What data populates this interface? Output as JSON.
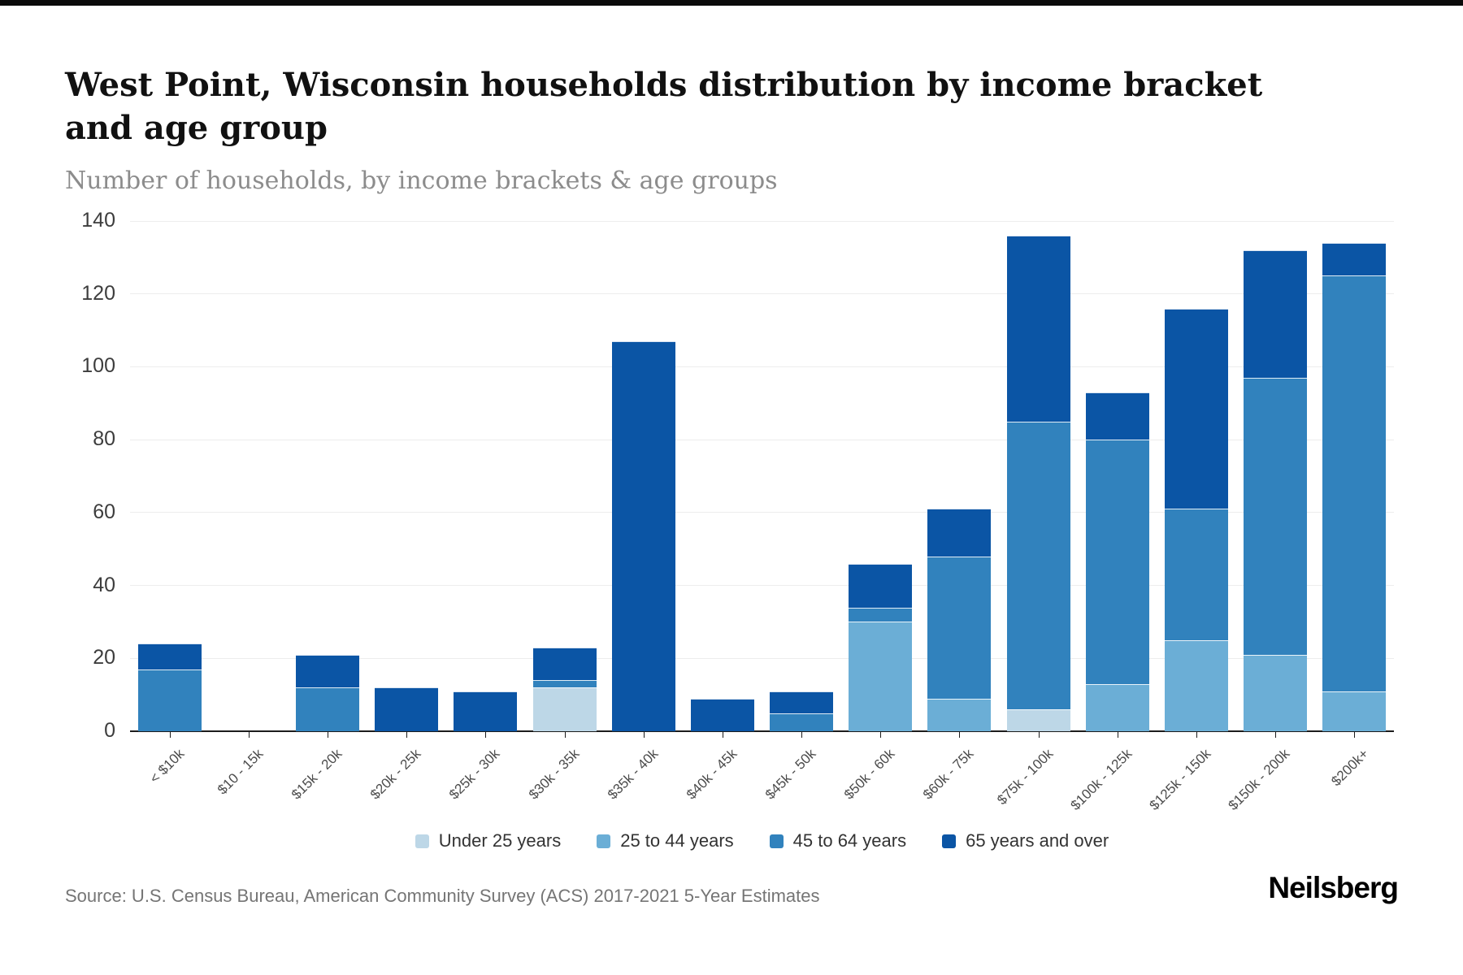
{
  "header": {
    "title": "West Point, Wisconsin households distribution by income bracket and age group",
    "subtitle": "Number of households, by income brackets & age groups"
  },
  "chart_data": {
    "type": "bar",
    "stacked": true,
    "title": "West Point, Wisconsin households distribution by income bracket and age group",
    "xlabel": "",
    "ylabel": "Number of households",
    "ylim": [
      0,
      140
    ],
    "yticks": [
      0,
      20,
      40,
      60,
      80,
      100,
      120,
      140
    ],
    "grid": true,
    "legend_position": "bottom",
    "categories": [
      "< $10k",
      "$10 - 15k",
      "$15k - 20k",
      "$20k - 25k",
      "$25k - 30k",
      "$30k - 35k",
      "$35k - 40k",
      "$40k - 45k",
      "$45k - 50k",
      "$50k - 60k",
      "$60k - 75k",
      "$75k - 100k",
      "$100k - 125k",
      "$125k - 150k",
      "$150k - 200k",
      "$200k+"
    ],
    "series": [
      {
        "name": "Under 25 years",
        "color": "#bdd7e7",
        "values": [
          0,
          0,
          0,
          0,
          0,
          12,
          0,
          0,
          0,
          0,
          0,
          6,
          0,
          0,
          0,
          0
        ]
      },
      {
        "name": "25 to 44 years",
        "color": "#6baed6",
        "values": [
          0,
          0,
          0,
          0,
          0,
          0,
          0,
          0,
          0,
          30,
          9,
          0,
          13,
          25,
          21,
          11
        ]
      },
      {
        "name": "45 to 64 years",
        "color": "#3182bd",
        "values": [
          17,
          0,
          12,
          0,
          0,
          2,
          0,
          0,
          5,
          4,
          39,
          79,
          67,
          36,
          76,
          114
        ]
      },
      {
        "name": "65 years and over",
        "color": "#0b55a5",
        "values": [
          7,
          0,
          9,
          12,
          11,
          9,
          107,
          9,
          6,
          12,
          13,
          51,
          13,
          55,
          35,
          9
        ]
      }
    ]
  },
  "footer": {
    "source": "Source: U.S. Census Bureau, American Community Survey (ACS) 2017-2021 5-Year Estimates",
    "brand": "Neilsberg"
  }
}
